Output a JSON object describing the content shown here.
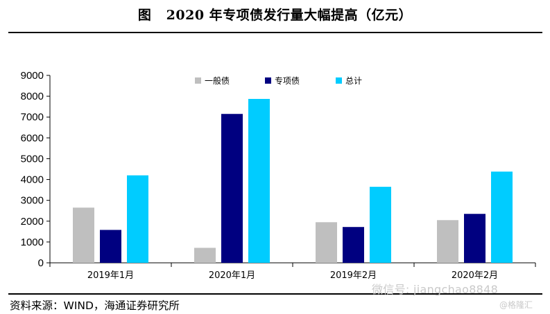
{
  "title": "图   2020 年专项债发行量大幅提高（亿元）",
  "source": "资料来源：WIND，海通证券研究所",
  "watermark": "微信号: jiangchao8848",
  "watermark_brand": "@格隆汇",
  "chart_data": {
    "type": "bar",
    "categories": [
      "2019年1月",
      "2020年1月",
      "2019年2月",
      "2020年2月"
    ],
    "series": [
      {
        "name": "一般债",
        "color": "#bfbfbf",
        "values": [
          2650,
          720,
          1950,
          2050
        ]
      },
      {
        "name": "专项债",
        "color": "#000080",
        "values": [
          1580,
          7150,
          1720,
          2350
        ]
      },
      {
        "name": "总计",
        "color": "#00ccff",
        "values": [
          4200,
          7870,
          3650,
          4380
        ]
      }
    ],
    "ylim": [
      0,
      9000
    ],
    "yticks": [
      0,
      1000,
      2000,
      3000,
      4000,
      5000,
      6000,
      7000,
      8000,
      9000
    ],
    "xlabel": "",
    "ylabel": "",
    "grid": false,
    "legend_position": "top-center"
  }
}
